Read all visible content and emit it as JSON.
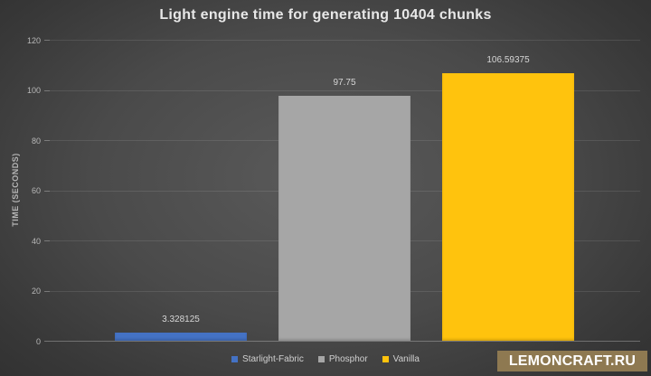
{
  "title": "Light engine time for generating 10404 chunks",
  "chart_data": {
    "type": "bar",
    "categories": [
      "Starlight-Fabric",
      "Phosphor",
      "Vanilla"
    ],
    "values": [
      3.328125,
      97.75,
      106.59375
    ],
    "value_labels": [
      "3.328125",
      "97.75",
      "106.59375"
    ],
    "colors": [
      "#4472C4",
      "#A6A6A6",
      "#FFC30D"
    ],
    "title": "Light engine time for generating 10404 chunks",
    "xlabel": "",
    "ylabel": "TIME (SECONDS)",
    "ylim": [
      0,
      120
    ],
    "yticks": [
      0,
      20,
      40,
      60,
      80,
      100,
      120
    ],
    "grid": true,
    "legend_position": "bottom"
  },
  "legend": {
    "items": [
      {
        "label": "Starlight-Fabric",
        "color": "#4472C4"
      },
      {
        "label": "Phosphor",
        "color": "#A6A6A6"
      },
      {
        "label": "Vanilla",
        "color": "#FFC30D"
      }
    ]
  },
  "watermark": {
    "text": "LEMONCRAFT.RU",
    "bg_color": "#8E7951",
    "text_color": "#FFFFFF"
  }
}
